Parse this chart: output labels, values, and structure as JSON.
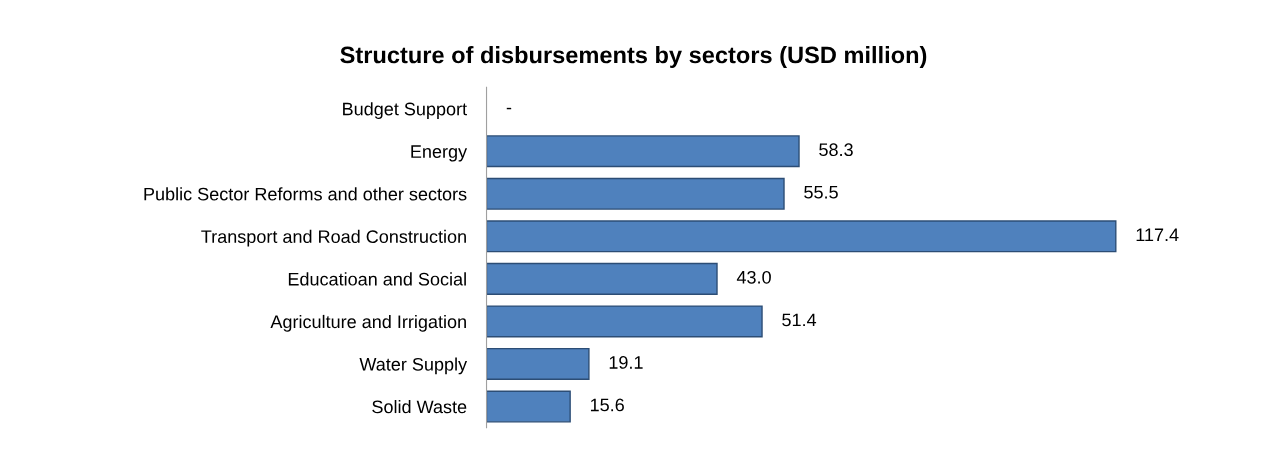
{
  "chart_data": {
    "type": "bar",
    "orientation": "horizontal",
    "title": "Structure of disbursements by sectors (USD million)",
    "categories": [
      "Budget Support",
      "Energy",
      "Public Sector Reforms and other sectors",
      "Transport and Road Construction",
      "Educatioan and Social",
      "Agriculture and Irrigation",
      "Water Supply",
      "Solid Waste"
    ],
    "values": [
      0,
      58.3,
      55.5,
      117.4,
      43.0,
      51.4,
      19.1,
      15.6
    ],
    "value_labels": [
      "-",
      "58.3",
      "55.5",
      "117.4",
      "43.0",
      "51.4",
      "19.1",
      "15.6"
    ],
    "color": "#4f81bd",
    "grid": false,
    "legend": false
  }
}
